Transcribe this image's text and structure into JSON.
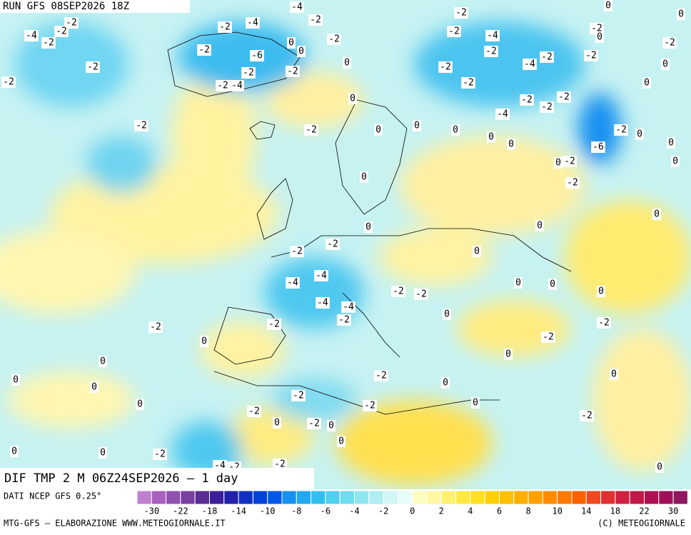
{
  "header": {
    "run": "RUN GFS 08SEP2026 18Z"
  },
  "map": {
    "contour_labels": [
      -4,
      -2,
      0,
      -2,
      0,
      -2,
      -4,
      -2,
      -2,
      -2,
      -2,
      -2,
      -4,
      -2,
      -6,
      0,
      0,
      -2,
      0,
      -2,
      -2,
      -2,
      -4,
      -2,
      -4,
      -2,
      -2,
      0,
      -2,
      -2,
      -2,
      -4,
      -2,
      -2,
      0,
      0,
      -2,
      -2,
      -2,
      -4,
      -2,
      -2,
      0,
      0,
      0,
      0,
      0,
      0,
      -2,
      0,
      -6,
      0,
      0,
      0,
      -2,
      0,
      -2,
      0,
      0,
      0,
      -2,
      -2,
      0,
      -4,
      -4,
      0,
      0,
      0,
      -2,
      -2,
      -4,
      -4,
      0,
      -2,
      -2,
      -2,
      -2,
      0,
      -2,
      0,
      0,
      0,
      0,
      0,
      -2,
      0,
      -2,
      -2,
      0,
      -2,
      0,
      0,
      -2,
      0,
      0,
      -2,
      0,
      0,
      -2,
      -4,
      -2,
      -2,
      0
    ]
  },
  "product": {
    "title": "DIF TMP 2 M 06Z24SEP2026 — 1 day"
  },
  "legend": {
    "source": "DATI NCEP GFS 0.25°",
    "colors": [
      "#c080d0",
      "#a860c0",
      "#9050b0",
      "#7a40a0",
      "#5a2c96",
      "#3c1e9a",
      "#2020a8",
      "#1030c0",
      "#0040d8",
      "#0058e8",
      "#1890f0",
      "#20a8f0",
      "#30c0f0",
      "#50d0f0",
      "#70dcf0",
      "#90e6f0",
      "#b0eef2",
      "#d0f6f6",
      "#e8fcfa",
      "#fffcc0",
      "#fff8a0",
      "#fff070",
      "#ffe840",
      "#ffe020",
      "#ffd000",
      "#ffc000",
      "#ffb000",
      "#ffa000",
      "#ff8c00",
      "#ff7800",
      "#ff6000",
      "#f04820",
      "#e03030",
      "#d02040",
      "#c01848",
      "#b01050",
      "#a01058",
      "#901860"
    ],
    "ticks": [
      -30,
      -22,
      -18,
      -14,
      -10,
      -8,
      -6,
      -4,
      -2,
      0,
      2,
      4,
      6,
      8,
      10,
      14,
      18,
      22,
      30
    ]
  },
  "footer": {
    "credit": "MTG-GFS — ELABORAZIONE WWW.METEOGIORNALE.IT",
    "copyright": "(C) METEOGIORNALE"
  }
}
